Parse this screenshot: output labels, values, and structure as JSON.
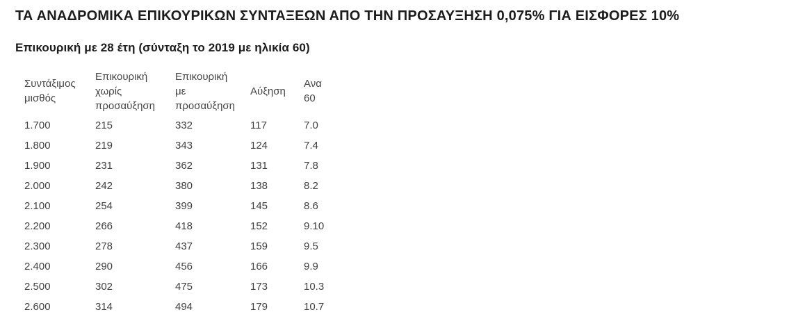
{
  "page": {
    "title": "ΤΑ ΑΝΑΔΡΟΜΙΚΑ ΕΠΙΚΟΥΡΙΚΩΝ ΣΥΝΤΑΞΕΩΝ ΑΠΟ ΤΗΝ ΠΡΟΣΑΥΞΗΣΗ 0,075% ΓΙΑ ΕΙΣΦΟΡΕΣ 10%",
    "subtitle": "Επικουρική με 28 έτη (σύνταξη το 2019 με ηλικία 60)"
  },
  "table": {
    "columns": [
      "Συντάξιμος μισθός",
      "Επικουρική χωρίς προσαύξηση",
      "Επικουρική με προσαύξηση",
      "Αύξηση",
      "Ανα 60"
    ],
    "rows": [
      [
        "1.700",
        "215",
        "332",
        "117",
        "7.0"
      ],
      [
        "1.800",
        "219",
        "343",
        "124",
        "7.4"
      ],
      [
        "1.900",
        "231",
        "362",
        "131",
        "7.8"
      ],
      [
        "2.000",
        "242",
        "380",
        "138",
        "8.2"
      ],
      [
        "2.100",
        "254",
        "399",
        "145",
        "8.6"
      ],
      [
        "2.200",
        "266",
        "418",
        "152",
        "9.10"
      ],
      [
        "2.300",
        "278",
        "437",
        "159",
        "9.5"
      ],
      [
        "2.400",
        "290",
        "456",
        "166",
        "9.9"
      ],
      [
        "2.500",
        "302",
        "475",
        "173",
        "10.3"
      ],
      [
        "2.600",
        "314",
        "494",
        "179",
        "10.7"
      ]
    ]
  },
  "colors": {
    "background": "#ffffff",
    "heading_text": "#1c1c1c",
    "table_text": "#414141"
  }
}
